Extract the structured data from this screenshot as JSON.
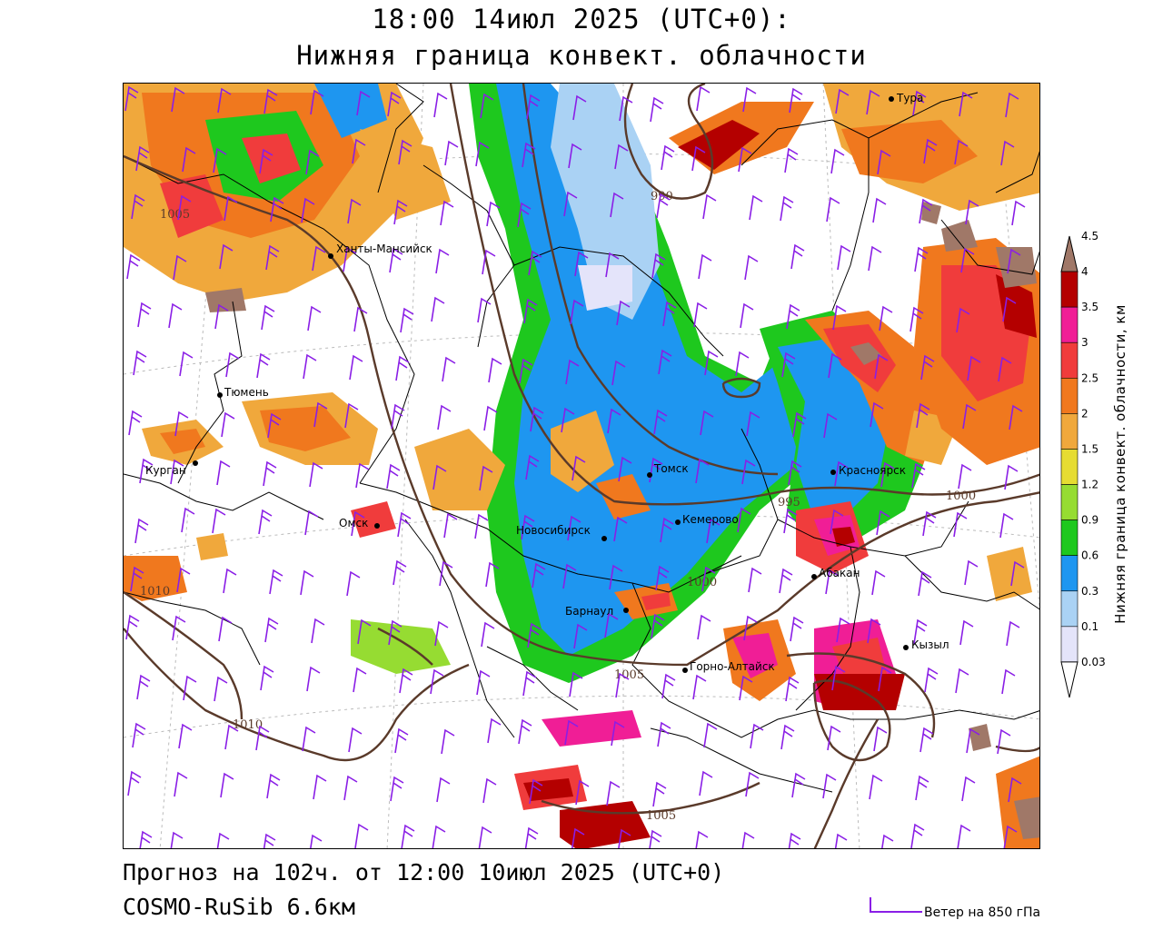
{
  "title": {
    "line1": "18:00 14июл 2025 (UTC+0):",
    "line2": "Нижняя граница конвект. облачности"
  },
  "footer": {
    "forecast": "Прогноз на 102ч. от 12:00 10июл 2025 (UTC+0)",
    "model": "COSMO-RuSib 6.6км",
    "wind_legend": "Ветер на 850 гПа"
  },
  "colorbar": {
    "title": "Нижняя граница конвект. облачности, км",
    "levels": [
      "0.03",
      "0.1",
      "0.3",
      "0.6",
      "0.9",
      "1.2",
      "1.5",
      "2",
      "2.5",
      "3",
      "3.5",
      "4",
      "4.5"
    ],
    "colors": [
      "#ffffff",
      "#e4e4fa",
      "#aad2f4",
      "#1e96f0",
      "#1ec81e",
      "#96dc32",
      "#e6dc32",
      "#f0a83c",
      "#f0781e",
      "#f03c3c",
      "#f01e96",
      "#b40000",
      "#a07868"
    ]
  },
  "cities": [
    {
      "name": "Тура"
    },
    {
      "name": "Ханты-Мансийск"
    },
    {
      "name": "Тюмень"
    },
    {
      "name": "Курган"
    },
    {
      "name": "Омск"
    },
    {
      "name": "Новосибирск"
    },
    {
      "name": "Томск"
    },
    {
      "name": "Кемерово"
    },
    {
      "name": "Красноярск"
    },
    {
      "name": "Абакан"
    },
    {
      "name": "Барнаул"
    },
    {
      "name": "Горно-Алтайск"
    },
    {
      "name": "Кызыл"
    }
  ],
  "isobars": [
    "990",
    "995",
    "1000",
    "1000",
    "1005",
    "1005",
    "1010",
    "1010",
    "1005"
  ],
  "colors": {
    "isobar": "#5a3a2a",
    "wind_barb": "#8a1ee6",
    "border": "#000000"
  }
}
